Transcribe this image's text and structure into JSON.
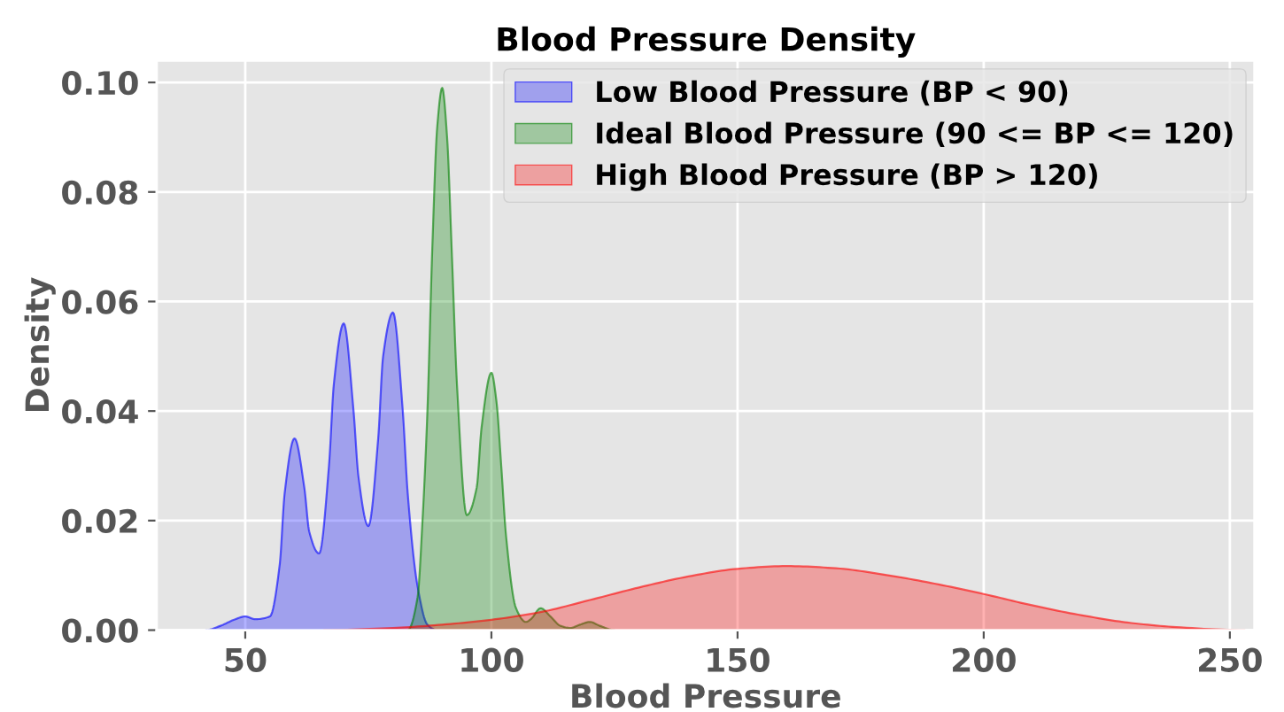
{
  "chart_data": {
    "type": "area",
    "title": "Blood Pressure Density",
    "xlabel": "Blood Pressure",
    "ylabel": "Density",
    "xlim": [
      32,
      255
    ],
    "ylim": [
      0,
      0.104
    ],
    "xticks": [
      50,
      100,
      150,
      200,
      250
    ],
    "yticks": [
      {
        "value": 0,
        "label": "0.00"
      },
      {
        "value": 0.02,
        "label": "0.02"
      },
      {
        "value": 0.04,
        "label": "0.04"
      },
      {
        "value": 0.06,
        "label": "0.06"
      },
      {
        "value": 0.08,
        "label": "0.08"
      },
      {
        "value": 0.1,
        "label": "0.10"
      }
    ],
    "grid": true,
    "legend": "top right",
    "series": [
      {
        "name": "Low Blood Pressure (BP < 90)",
        "color": "#0000ff",
        "x": [
          42,
          45,
          48,
          50,
          52,
          55,
          57,
          58,
          60,
          62,
          63,
          65,
          67,
          68,
          70,
          72,
          73,
          75,
          77,
          78,
          80,
          82,
          83,
          85,
          87,
          89
        ],
        "values": [
          0,
          0.0008,
          0.002,
          0.0025,
          0.002,
          0.0025,
          0.012,
          0.025,
          0.035,
          0.026,
          0.018,
          0.014,
          0.03,
          0.045,
          0.056,
          0.04,
          0.028,
          0.019,
          0.035,
          0.05,
          0.058,
          0.04,
          0.025,
          0.008,
          0.001,
          0
        ]
      },
      {
        "name": "Ideal Blood Pressure (90 <= BP <= 120)",
        "color": "#008000",
        "x": [
          83,
          85,
          86,
          87,
          88,
          89,
          90,
          91,
          92,
          93,
          95,
          97,
          98,
          100,
          101,
          102,
          103,
          105,
          107,
          108,
          110,
          112,
          114,
          116,
          118,
          120,
          122,
          125
        ],
        "values": [
          0,
          0.006,
          0.02,
          0.04,
          0.07,
          0.092,
          0.099,
          0.09,
          0.068,
          0.045,
          0.021,
          0.026,
          0.037,
          0.047,
          0.042,
          0.03,
          0.017,
          0.004,
          0.0015,
          0.002,
          0.004,
          0.0025,
          0.0008,
          0.0004,
          0.001,
          0.0015,
          0.0008,
          0
        ]
      },
      {
        "name": "High Blood Pressure (BP > 120)",
        "color": "#ff0000",
        "x": [
          66,
          80,
          90,
          100,
          110,
          120,
          130,
          140,
          150,
          160,
          170,
          180,
          190,
          200,
          210,
          220,
          230,
          240,
          253
        ],
        "values": [
          0,
          0.0004,
          0.001,
          0.0019,
          0.0033,
          0.0055,
          0.0078,
          0.0098,
          0.0112,
          0.0117,
          0.0113,
          0.0101,
          0.0085,
          0.0066,
          0.0045,
          0.0027,
          0.0013,
          0.0005,
          0
        ]
      }
    ]
  }
}
